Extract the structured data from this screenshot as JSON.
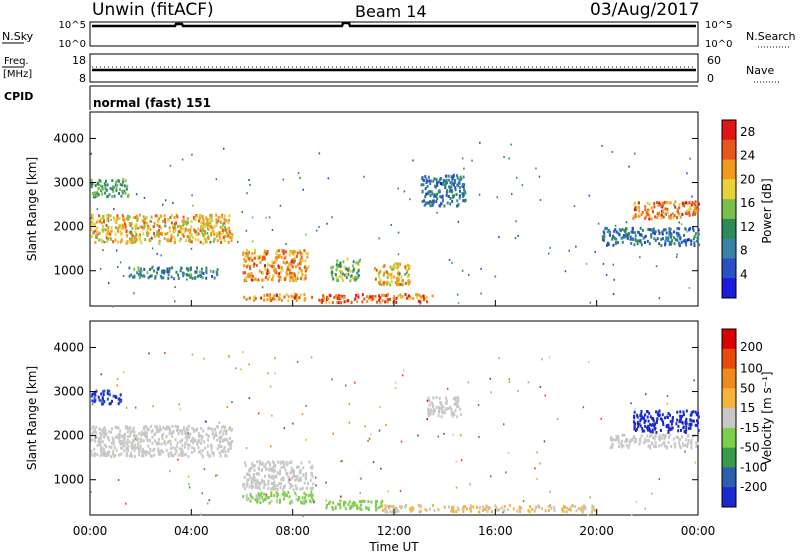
{
  "header": {
    "station": "Unwin (fitACF)",
    "beam": "Beam 14",
    "date": "03/Aug/2017"
  },
  "strip": {
    "nsky_label": "N.Sky",
    "nsearch_label": "N.Search",
    "nsky_ticks": [
      "10^5",
      "10^0"
    ],
    "nsearch_ticks": [
      "10^5",
      "10^0"
    ],
    "freq_label_1": "Freq.",
    "freq_label_2": "[MHz]",
    "freq_ticks": [
      "18",
      "8"
    ],
    "nave_label": "Nave",
    "nave_ticks": [
      "60",
      "0"
    ],
    "cpid_label": "CPID",
    "cpid_value": "normal (fast) 151"
  },
  "colors": {
    "power": [
      "#1a1adc",
      "#2a50c8",
      "#3b82a8",
      "#2e8b57",
      "#7ac04a",
      "#e8d23a",
      "#f29a1c",
      "#e8561e",
      "#e01616"
    ],
    "velocity": [
      "#d90000",
      "#e84a0a",
      "#f08a1c",
      "#f7b33a",
      "#c8c8c8",
      "#7ad04a",
      "#3a9a4a",
      "#2a5fb0",
      "#1a2ad0"
    ]
  },
  "chart_data": [
    {
      "type": "heatmap",
      "name": "power",
      "ylabel": "Slant Range [km]",
      "xlabel": "",
      "y_ticks": [
        "1000",
        "2000",
        "3000",
        "4000"
      ],
      "ylim": [
        200,
        4600
      ],
      "colorbar_label": "Power [dB]",
      "colorbar_ticks": [
        "4",
        "8",
        "12",
        "16",
        "20",
        "24",
        "28"
      ],
      "colorbar_range": [
        0,
        30
      ],
      "regions": [
        {
          "t0": 0.0,
          "t1": 5.6,
          "r0": 1650,
          "r1": 2300,
          "v": 20
        },
        {
          "t0": 1.5,
          "t1": 5.0,
          "r0": 850,
          "r1": 1100,
          "v": 10
        },
        {
          "t0": 6.0,
          "t1": 8.6,
          "r0": 800,
          "r1": 1500,
          "v": 22
        },
        {
          "t0": 9.4,
          "t1": 10.6,
          "r0": 800,
          "r1": 1300,
          "v": 14
        },
        {
          "t0": 11.2,
          "t1": 12.6,
          "r0": 700,
          "r1": 1200,
          "v": 20
        },
        {
          "t0": 6.0,
          "t1": 8.8,
          "r0": 350,
          "r1": 500,
          "v": 22
        },
        {
          "t0": 9.0,
          "t1": 13.5,
          "r0": 300,
          "r1": 500,
          "v": 24
        },
        {
          "t0": 13.0,
          "t1": 14.8,
          "r0": 2500,
          "r1": 3200,
          "v": 8
        },
        {
          "t0": 20.2,
          "t1": 24.0,
          "r0": 1600,
          "r1": 2000,
          "v": 8
        },
        {
          "t0": 21.4,
          "t1": 24.0,
          "r0": 2200,
          "r1": 2600,
          "v": 23
        },
        {
          "t0": 0.0,
          "t1": 1.5,
          "r0": 2700,
          "r1": 3100,
          "v": 12
        }
      ]
    },
    {
      "type": "heatmap",
      "name": "velocity",
      "ylabel": "Slant Range [km]",
      "xlabel": "Time UT",
      "x_ticks": [
        "00:00",
        "04:00",
        "08:00",
        "12:00",
        "16:00",
        "20:00",
        "00:00"
      ],
      "xlim": [
        0,
        24
      ],
      "y_ticks": [
        "1000",
        "2000",
        "3000",
        "4000"
      ],
      "ylim": [
        200,
        4600
      ],
      "colorbar_label": "Velocity [m s⁻¹]",
      "colorbar_ticks": [
        "200",
        "100",
        "50",
        "15",
        "-15",
        "-50",
        "-100",
        "-200"
      ],
      "colorbar_range": [
        -250,
        250
      ],
      "regions": [
        {
          "t0": 0.0,
          "t1": 5.6,
          "r0": 1550,
          "r1": 2250,
          "v": 0
        },
        {
          "t0": 6.0,
          "t1": 8.8,
          "r0": 800,
          "r1": 1450,
          "v": 0
        },
        {
          "t0": 6.0,
          "t1": 8.8,
          "r0": 500,
          "r1": 750,
          "v": -40
        },
        {
          "t0": 9.2,
          "t1": 11.5,
          "r0": 350,
          "r1": 550,
          "v": -50
        },
        {
          "t0": 11.5,
          "t1": 20.0,
          "r0": 300,
          "r1": 450,
          "v": 30
        },
        {
          "t0": 0.0,
          "t1": 1.2,
          "r0": 2750,
          "r1": 3050,
          "v": -200
        },
        {
          "t0": 21.4,
          "t1": 24.0,
          "r0": 2100,
          "r1": 2600,
          "v": -220
        },
        {
          "t0": 20.5,
          "t1": 24.0,
          "r0": 1750,
          "r1": 2050,
          "v": 0
        },
        {
          "t0": 13.2,
          "t1": 14.6,
          "r0": 2450,
          "r1": 2900,
          "v": 0
        }
      ]
    }
  ]
}
